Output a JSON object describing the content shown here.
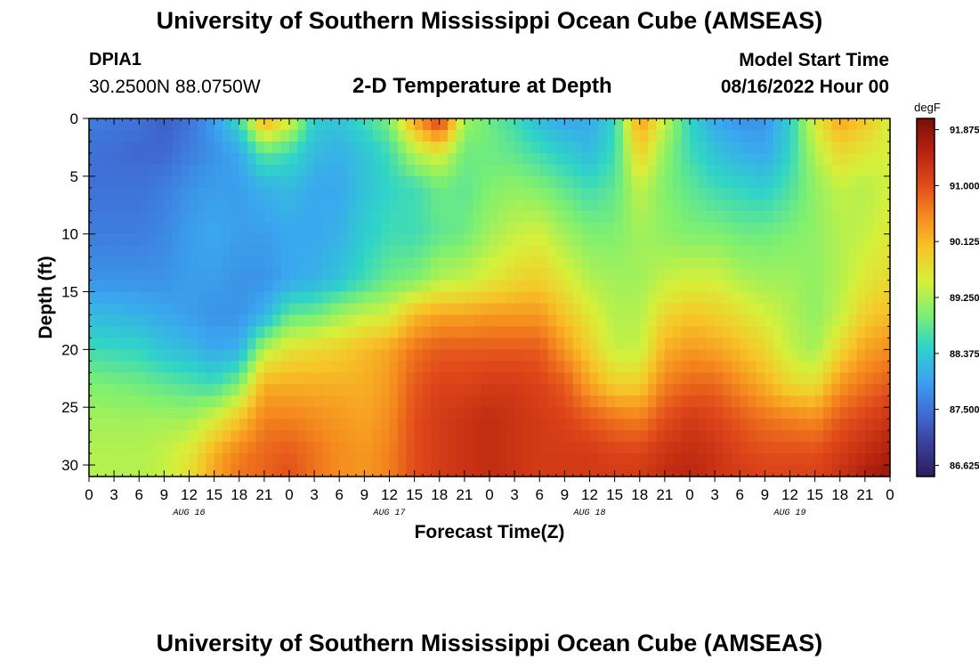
{
  "header": {
    "title": "University of Southern Mississippi Ocean Cube (AMSEAS)",
    "station_id": "DPIA1",
    "station_coords": "30.2500N  88.0750W",
    "chart_title": "2-D Temperature at Depth",
    "model_start_label": "Model Start Time",
    "model_start_value": "08/16/2022 Hour 00"
  },
  "footer": {
    "title": "University of Southern Mississippi Ocean Cube (AMSEAS)"
  },
  "chart_data": {
    "type": "heatmap",
    "title": "2-D Temperature at Depth",
    "xlabel": "Forecast Time(Z)",
    "ylabel": "Depth (ft)",
    "x_range_hours": [
      0,
      96
    ],
    "y_range_ft": [
      0,
      31
    ],
    "x_tick_labels": [
      "0",
      "3",
      "6",
      "9",
      "12",
      "15",
      "18",
      "21",
      "0",
      "3",
      "6",
      "9",
      "12",
      "15",
      "18",
      "21",
      "0",
      "3",
      "6",
      "9",
      "12",
      "15",
      "18",
      "21",
      "0",
      "3",
      "6",
      "9",
      "12",
      "15",
      "18",
      "21",
      "0"
    ],
    "y_tick_values": [
      0,
      5,
      10,
      15,
      20,
      25,
      30
    ],
    "day_labels": [
      {
        "hour": 12,
        "label": "AUG 16"
      },
      {
        "hour": 36,
        "label": "AUG 17"
      },
      {
        "hour": 60,
        "label": "AUG 18"
      },
      {
        "hour": 84,
        "label": "AUG 19"
      }
    ],
    "colorbar": {
      "unit_label": "degF",
      "range": [
        86.45,
        92.05
      ],
      "tick_values": [
        "91.875",
        "91.000",
        "90.125",
        "89.250",
        "88.375",
        "87.500",
        "86.625"
      ],
      "colors": [
        "#2b1d5c",
        "#3a3f9c",
        "#3f6fd6",
        "#3aa6f0",
        "#2fd4c8",
        "#7ef070",
        "#d6f03a",
        "#f7c528",
        "#f58a1e",
        "#e0481a",
        "#b5220f",
        "#7a0e06"
      ]
    },
    "temperature_depth_profiles_degF": {
      "depths_ft": [
        0,
        3,
        6,
        10,
        14,
        17,
        20,
        23,
        26,
        29,
        31
      ],
      "profiles": [
        {
          "hour": 0,
          "values": [
            87.6,
            87.5,
            87.5,
            87.6,
            87.8,
            88.2,
            88.6,
            89.0,
            89.2,
            89.3,
            89.3
          ]
        },
        {
          "hour": 6,
          "values": [
            87.5,
            87.4,
            87.5,
            87.6,
            87.8,
            88.1,
            88.5,
            88.9,
            89.2,
            89.3,
            89.3
          ]
        },
        {
          "hour": 9,
          "values": [
            87.3,
            87.4,
            87.6,
            87.7,
            87.8,
            88.0,
            88.3,
            88.8,
            89.2,
            89.4,
            89.4
          ]
        },
        {
          "hour": 12,
          "values": [
            87.5,
            87.6,
            87.8,
            87.9,
            87.9,
            87.9,
            88.2,
            88.7,
            89.2,
            89.6,
            89.7
          ]
        },
        {
          "hour": 15,
          "values": [
            87.9,
            87.8,
            87.9,
            88.0,
            87.9,
            87.8,
            88.0,
            88.6,
            89.5,
            90.2,
            90.3
          ]
        },
        {
          "hour": 18,
          "values": [
            88.6,
            88.0,
            87.9,
            87.9,
            87.8,
            87.8,
            88.1,
            89.0,
            90.0,
            90.6,
            90.7
          ]
        },
        {
          "hour": 21,
          "values": [
            90.3,
            88.8,
            88.1,
            87.9,
            87.8,
            88.1,
            89.3,
            90.2,
            90.6,
            90.8,
            90.8
          ]
        },
        {
          "hour": 24,
          "values": [
            89.6,
            88.6,
            88.2,
            88.0,
            88.0,
            88.8,
            89.7,
            90.2,
            90.6,
            90.9,
            91.0
          ]
        },
        {
          "hour": 27,
          "values": [
            88.4,
            88.2,
            88.0,
            88.0,
            88.1,
            88.9,
            89.8,
            90.2,
            90.5,
            90.7,
            90.7
          ]
        },
        {
          "hour": 30,
          "values": [
            88.3,
            88.1,
            88.0,
            88.1,
            88.3,
            89.2,
            89.9,
            90.2,
            90.4,
            90.5,
            90.5
          ]
        },
        {
          "hour": 33,
          "values": [
            88.6,
            88.3,
            88.3,
            88.4,
            88.6,
            89.4,
            90.1,
            90.2,
            90.3,
            90.4,
            90.4
          ]
        },
        {
          "hour": 36,
          "values": [
            89.0,
            88.6,
            88.5,
            88.6,
            88.9,
            89.5,
            90.3,
            90.4,
            90.5,
            90.6,
            90.6
          ]
        },
        {
          "hour": 39,
          "values": [
            90.3,
            89.3,
            88.6,
            88.6,
            89.0,
            90.1,
            90.7,
            90.9,
            91.0,
            91.0,
            91.0
          ]
        },
        {
          "hour": 42,
          "values": [
            91.3,
            89.6,
            88.9,
            88.8,
            89.3,
            90.3,
            90.9,
            91.1,
            91.2,
            91.2,
            91.2
          ]
        },
        {
          "hour": 45,
          "values": [
            89.2,
            88.9,
            88.8,
            88.9,
            89.4,
            90.3,
            90.9,
            91.1,
            91.3,
            91.3,
            91.3
          ]
        },
        {
          "hour": 48,
          "values": [
            88.9,
            88.9,
            89.0,
            89.2,
            89.6,
            90.4,
            90.9,
            91.2,
            91.4,
            91.4,
            91.4
          ]
        },
        {
          "hour": 51,
          "values": [
            88.6,
            88.8,
            89.1,
            89.4,
            89.8,
            90.4,
            90.9,
            91.2,
            91.3,
            91.3,
            91.3
          ]
        },
        {
          "hour": 54,
          "values": [
            88.2,
            88.6,
            89.0,
            89.5,
            89.9,
            90.4,
            90.9,
            91.1,
            91.2,
            91.2,
            91.2
          ]
        },
        {
          "hour": 57,
          "values": [
            88.0,
            88.4,
            88.8,
            89.2,
            89.6,
            90.0,
            90.4,
            90.9,
            91.1,
            91.2,
            91.2
          ]
        },
        {
          "hour": 60,
          "values": [
            88.0,
            88.2,
            88.6,
            89.0,
            89.3,
            89.6,
            89.9,
            90.3,
            90.9,
            91.2,
            91.2
          ]
        },
        {
          "hour": 63,
          "values": [
            88.5,
            88.6,
            88.8,
            89.0,
            89.2,
            89.3,
            89.4,
            89.9,
            90.7,
            91.1,
            91.2
          ]
        },
        {
          "hour": 66,
          "values": [
            90.4,
            89.9,
            89.4,
            89.2,
            89.2,
            89.3,
            89.4,
            89.9,
            90.6,
            91.1,
            91.2
          ]
        },
        {
          "hour": 69,
          "values": [
            89.4,
            89.1,
            89.0,
            89.1,
            89.4,
            89.8,
            90.2,
            90.6,
            91.0,
            91.3,
            91.4
          ]
        },
        {
          "hour": 72,
          "values": [
            88.5,
            88.6,
            88.8,
            89.0,
            89.5,
            90.0,
            90.4,
            90.8,
            91.2,
            91.4,
            91.5
          ]
        },
        {
          "hour": 75,
          "values": [
            88.0,
            88.3,
            88.6,
            89.0,
            89.5,
            89.9,
            90.3,
            90.8,
            91.1,
            91.3,
            91.3
          ]
        },
        {
          "hour": 78,
          "values": [
            87.8,
            88.1,
            88.5,
            88.9,
            89.3,
            89.7,
            90.1,
            90.5,
            90.9,
            91.1,
            91.2
          ]
        },
        {
          "hour": 81,
          "values": [
            87.8,
            88.0,
            88.4,
            88.9,
            89.2,
            89.5,
            89.8,
            90.2,
            90.7,
            91.0,
            91.1
          ]
        },
        {
          "hour": 84,
          "values": [
            88.4,
            88.5,
            88.7,
            89.0,
            89.2,
            89.3,
            89.4,
            89.8,
            90.6,
            91.0,
            91.1
          ]
        },
        {
          "hour": 87,
          "values": [
            89.6,
            89.3,
            89.1,
            89.1,
            89.1,
            89.1,
            89.2,
            89.7,
            90.5,
            91.0,
            91.1
          ]
        },
        {
          "hour": 90,
          "values": [
            90.3,
            89.8,
            89.4,
            89.3,
            89.3,
            89.4,
            89.8,
            90.4,
            90.9,
            91.2,
            91.3
          ]
        },
        {
          "hour": 93,
          "values": [
            90.0,
            89.6,
            89.3,
            89.4,
            89.6,
            89.9,
            90.3,
            90.7,
            91.1,
            91.4,
            91.6
          ]
        },
        {
          "hour": 96,
          "values": [
            89.5,
            89.5,
            89.5,
            89.6,
            89.8,
            90.1,
            90.5,
            90.9,
            91.3,
            91.6,
            91.8
          ]
        }
      ]
    }
  }
}
